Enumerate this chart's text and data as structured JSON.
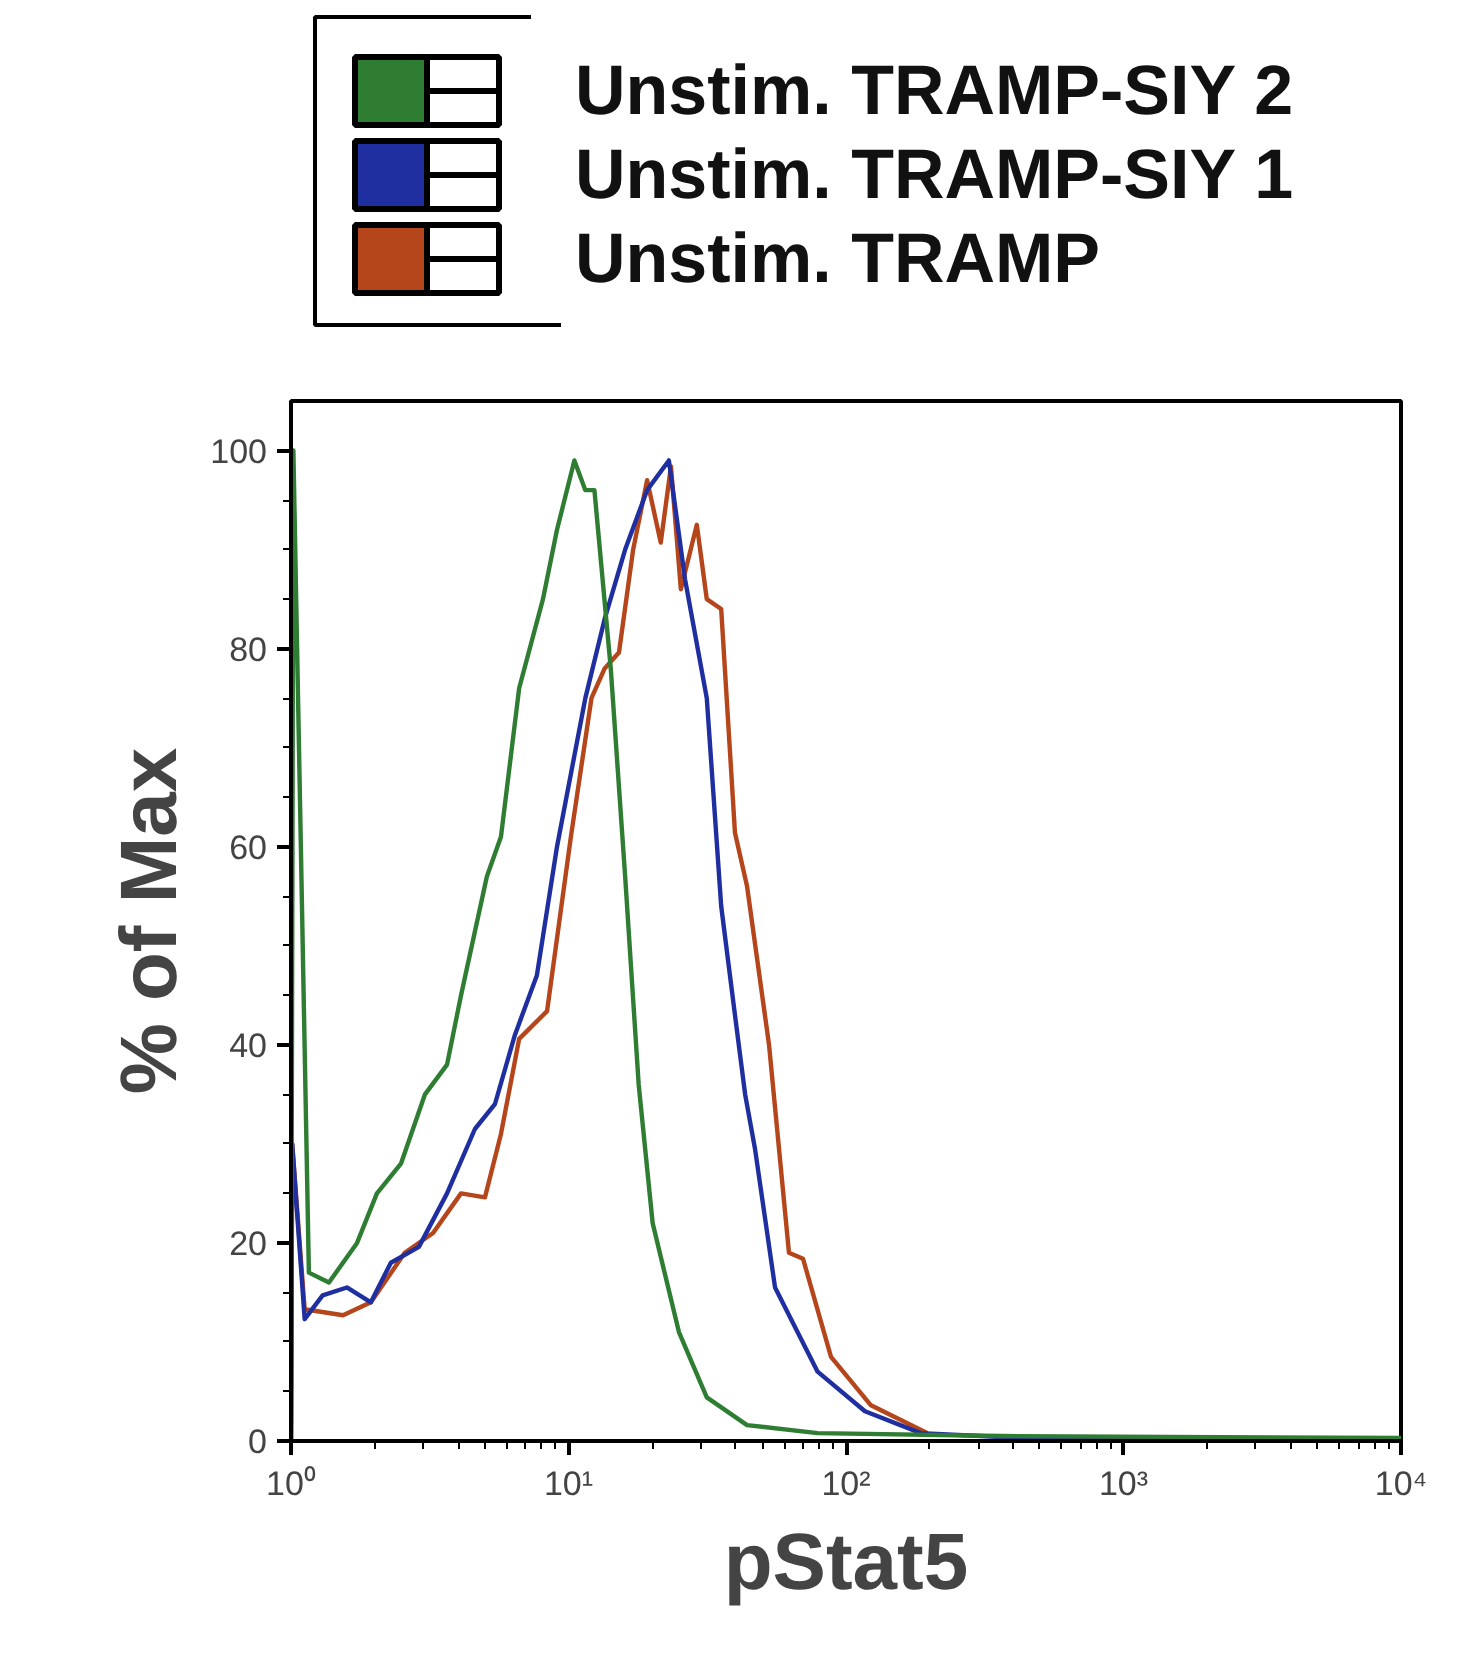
{
  "chart_data": {
    "type": "line",
    "xlabel": "pStat5",
    "ylabel": "% of Max",
    "log": "x",
    "xlim": [
      1,
      10000
    ],
    "xticks": [
      {
        "value": 1,
        "label": "10⁰"
      },
      {
        "value": 10,
        "label": "10¹"
      },
      {
        "value": 100,
        "label": "10²"
      },
      {
        "value": 1000,
        "label": "10³"
      },
      {
        "value": 10000,
        "label": "10⁴"
      }
    ],
    "ylim": [
      0,
      105
    ],
    "yticks": [
      0,
      20,
      40,
      60,
      80,
      100
    ],
    "grid": false,
    "legend": "top",
    "marker": "none",
    "line_style": "solid",
    "series": [
      {
        "name": "Unstim. TRAMP-SIY 2",
        "color": "#2e7d32",
        "x": [
          1,
          1.02,
          1.16,
          1.37,
          1.73,
          2.04,
          2.49,
          3.04,
          3.65,
          4.1,
          5.08,
          5.71,
          6.64,
          8.09,
          9.09,
          10.5,
          11.5,
          12.4,
          14.2,
          16,
          17.9,
          20.1,
          25,
          31.5,
          44,
          79,
          362,
          10000
        ],
        "values": [
          0,
          100,
          17,
          16,
          20,
          25,
          28,
          35,
          38,
          45,
          57,
          61,
          76,
          85,
          92,
          99,
          96,
          96,
          78,
          57,
          36,
          22,
          11,
          4.4,
          1.6,
          0.8,
          0.5,
          0.3
        ]
      },
      {
        "name": "Unstim. TRAMP-SIY 1",
        "color": "#1f2fa0",
        "x": [
          1,
          1.01,
          1.12,
          1.3,
          1.59,
          1.94,
          2.29,
          2.89,
          3.65,
          4.6,
          5.43,
          6.41,
          7.69,
          9.09,
          11.5,
          13.5,
          16,
          19.2,
          23,
          26.3,
          31.5,
          35.5,
          39.8,
          43.3,
          47,
          55.5,
          79,
          117,
          186,
          362,
          10000
        ],
        "values": [
          0,
          30,
          12.3,
          14.7,
          15.5,
          14,
          18,
          19.6,
          25,
          31.5,
          34,
          41,
          47,
          60,
          75,
          83,
          90,
          96,
          99,
          87,
          75,
          54,
          43,
          35,
          29.5,
          15.5,
          7,
          3,
          0.8,
          0.4,
          0.2
        ]
      },
      {
        "name": "Unstim. TRAMP",
        "color": "#b5451b",
        "x": [
          1,
          1.01,
          1.12,
          1.54,
          1.94,
          2.57,
          3.25,
          4.1,
          5,
          5.71,
          6.64,
          8.37,
          10.2,
          12.1,
          13.5,
          15.2,
          17.1,
          19.2,
          21.5,
          23.4,
          25.4,
          29,
          31.5,
          35.5,
          39.8,
          44,
          52.8,
          62.3,
          70,
          88.3,
          123,
          196
        ],
        "values": [
          0,
          30,
          13.3,
          12.7,
          14,
          19,
          21,
          25,
          24.6,
          31,
          40.6,
          43.4,
          61,
          75,
          78,
          79.6,
          90,
          97,
          90.7,
          98.4,
          86,
          92.5,
          85,
          84,
          61.4,
          56,
          40,
          19,
          18.4,
          8.5,
          3.6,
          0.8
        ]
      }
    ]
  }
}
